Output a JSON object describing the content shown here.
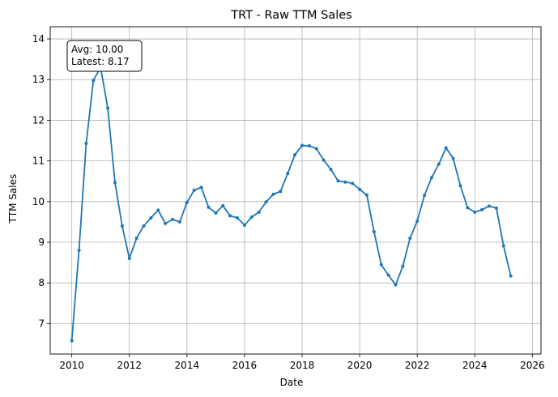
{
  "chart_data": {
    "type": "line",
    "title": "TRT - Raw TTM Sales",
    "xlabel": "Date",
    "ylabel": "TTM Sales",
    "xlim": [
      2009.25,
      2026.3
    ],
    "ylim": [
      6.25,
      14.3
    ],
    "xticks": [
      2010,
      2012,
      2014,
      2016,
      2018,
      2020,
      2022,
      2024,
      2026
    ],
    "yticks": [
      7,
      8,
      9,
      10,
      11,
      12,
      13,
      14
    ],
    "grid": true,
    "color": "#1f77b4",
    "annotation": {
      "line1": "Avg: 10.00",
      "line2": "Latest: 8.17",
      "position": "top-left"
    },
    "series": [
      {
        "x": [
          2010.0,
          2010.25,
          2010.5,
          2010.75,
          2011.0,
          2011.25,
          2011.5,
          2011.75,
          2012.0,
          2012.25,
          2012.5,
          2012.75,
          2013.0,
          2013.25,
          2013.5,
          2013.75,
          2014.0,
          2014.25,
          2014.5,
          2014.75,
          2015.0,
          2015.25,
          2015.5,
          2015.75,
          2016.0,
          2016.25,
          2016.5,
          2016.75,
          2017.0,
          2017.25,
          2017.5,
          2017.75,
          2018.0,
          2018.25,
          2018.5,
          2018.75,
          2019.0,
          2019.25,
          2019.5,
          2019.75,
          2020.0,
          2020.25,
          2020.5,
          2020.75,
          2021.0,
          2021.25,
          2021.5,
          2021.75,
          2022.0,
          2022.25,
          2022.5,
          2022.75,
          2023.0,
          2023.25,
          2023.5,
          2023.75,
          2024.0,
          2024.25,
          2024.5,
          2024.75,
          2025.0,
          2025.25
        ],
        "values": [
          6.58,
          8.8,
          11.43,
          12.98,
          13.3,
          12.3,
          10.47,
          9.4,
          8.6,
          9.1,
          9.4,
          9.6,
          9.79,
          9.46,
          9.56,
          9.5,
          9.98,
          10.28,
          10.35,
          9.86,
          9.72,
          9.9,
          9.65,
          9.6,
          9.42,
          9.62,
          9.74,
          9.99,
          10.18,
          10.25,
          10.69,
          11.15,
          11.38,
          11.37,
          11.3,
          11.02,
          10.79,
          10.51,
          10.48,
          10.45,
          10.3,
          10.16,
          9.26,
          8.45,
          8.19,
          7.95,
          8.41,
          9.1,
          9.52,
          10.15,
          10.59,
          10.92,
          11.32,
          11.06,
          10.39,
          9.85,
          9.74,
          9.8,
          9.89,
          9.84,
          8.91,
          8.17
        ]
      }
    ]
  }
}
